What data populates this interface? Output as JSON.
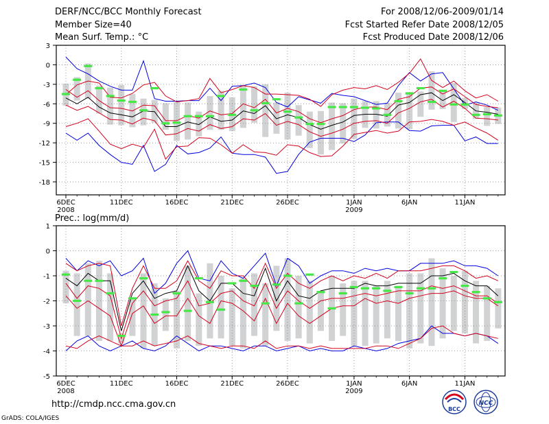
{
  "header": {
    "title": "DERF/NCC/BCC Monthly Forecast",
    "member_size": "Member Size=40",
    "variable": "Mean Surf. Temp.: °C",
    "for_range": "For 2008/12/06-2009/01/14",
    "fcst_started": "Fcst Started Refer Date 2008/12/05",
    "fcst_produced": "Fcst Produced Date 2008/12/06"
  },
  "footer": {
    "url": "http://cmdp.ncc.cma.gov.cn",
    "credit": "GrADS: COLA/IGES",
    "logo_bcc": "BCC",
    "logo_ncc": "NCC"
  },
  "colors": {
    "box": "#d0d2d4",
    "mean": "#000000",
    "inner": "#d4001c",
    "outer": "#0000e0",
    "marker": "#46e846",
    "grid": "#888888"
  },
  "chart_data": [
    {
      "type": "box",
      "title": "Mean Surf. Temp.: °C",
      "ylabel": "",
      "ylim": [
        -20,
        3
      ],
      "yticks": [
        3,
        0,
        -3,
        -6,
        -9,
        -12,
        -15,
        -18
      ],
      "days": 40,
      "xlabels": [
        {
          "day": 1,
          "label": "6DEC",
          "sub": "2008"
        },
        {
          "day": 6,
          "label": "11DEC",
          "sub": ""
        },
        {
          "day": 11,
          "label": "16DEC",
          "sub": ""
        },
        {
          "day": 16,
          "label": "21DEC",
          "sub": ""
        },
        {
          "day": 21,
          "label": "26DEC",
          "sub": ""
        },
        {
          "day": 27,
          "label": "1JAN",
          "sub": "2009"
        },
        {
          "day": 32,
          "label": "6JAN",
          "sub": ""
        },
        {
          "day": 37,
          "label": "11JAN",
          "sub": ""
        }
      ],
      "box_low": [
        -6.3,
        -5.5,
        -5.2,
        -7.5,
        -9.2,
        -9.3,
        -9.6,
        -9.3,
        -8.9,
        -10,
        -11.7,
        -11.5,
        -11,
        -10,
        -10,
        -10.2,
        -9.7,
        -8.9,
        -11.1,
        -10.6,
        -11.5,
        -10.9,
        -12.8,
        -13.8,
        -13.1,
        -12.1,
        -11.4,
        -9.7,
        -9.8,
        -9.5,
        -9.8,
        -9.9,
        -8,
        -6.9,
        -6.8,
        -8.8,
        -6.8,
        -8.3,
        -9.4,
        -9.1
      ],
      "box_high": [
        -2.9,
        -1.9,
        0.2,
        -3.2,
        -3.5,
        -3.1,
        -4.5,
        -5.2,
        -5.4,
        -5.9,
        -5.7,
        -5.8,
        -7.2,
        -4.8,
        -4,
        -5,
        -3.1,
        -3.3,
        -3,
        -5.8,
        -4.3,
        -6.2,
        -7.2,
        -7.1,
        -5.8,
        -5.9,
        -5.2,
        -5.6,
        -5.6,
        -5.9,
        -4.3,
        -4.2,
        -4.1,
        -1,
        -3.9,
        -2.8,
        -5.1,
        -5.8,
        -6.5,
        -6.6
      ],
      "mean": [
        -5.1,
        -6,
        -5,
        -6.5,
        -7.4,
        -7.7,
        -8,
        -7.1,
        -7.2,
        -9.5,
        -9.5,
        -8.8,
        -9.2,
        -8,
        -8.7,
        -8.5,
        -7.1,
        -7.5,
        -6.3,
        -8.3,
        -7.7,
        -8.1,
        -9.2,
        -9.9,
        -9.3,
        -8.8,
        -7.8,
        -7.6,
        -7.6,
        -7.9,
        -6.2,
        -5.8,
        -4.6,
        -4.3,
        -5.5,
        -4.6,
        -5.8,
        -7.1,
        -7.3,
        -7.6
      ],
      "inner_high": [
        -3.8,
        -5,
        -4,
        -5.5,
        -6.6,
        -6.7,
        -7.1,
        -6.2,
        -6.3,
        -8.6,
        -8.6,
        -7.8,
        -8.2,
        -7.1,
        -7.7,
        -7.5,
        -6,
        -6.6,
        -5.3,
        -7.4,
        -6.7,
        -7.2,
        -8.3,
        -8.9,
        -8.3,
        -7.8,
        -6.9,
        -6.5,
        -6.5,
        -6.9,
        -5.3,
        -4.9,
        -3.6,
        -3.4,
        -4.5,
        -3.7,
        -4.9,
        -6.1,
        -6.4,
        -6.6
      ],
      "inner_low": [
        -6.2,
        -7,
        -6.4,
        -7.4,
        -8.4,
        -8.5,
        -9.1,
        -8.2,
        -8.6,
        -10.8,
        -10.6,
        -9.8,
        -10.2,
        -9.2,
        -9.8,
        -9.5,
        -8.3,
        -8.5,
        -7.5,
        -9.3,
        -8.7,
        -9.2,
        -10.3,
        -11,
        -10.5,
        -9.9,
        -9,
        -8.7,
        -8.6,
        -9,
        -7.4,
        -6.7,
        -5.7,
        -5.3,
        -6.5,
        -5.6,
        -6.7,
        -8.2,
        -8.3,
        -8.5
      ],
      "outer_high": [
        -4.6,
        -3.1,
        -2.5,
        -2.8,
        -5,
        -5.1,
        -4.4,
        -3.1,
        -2.7,
        -4.8,
        -5.7,
        -5.5,
        -5.2,
        -2.1,
        -4.3,
        -3.8,
        -3.2,
        -3.5,
        -4.5,
        -4.5,
        -4.6,
        -4.7,
        -5.3,
        -6.4,
        -4.6,
        -3.9,
        -3.5,
        -3.7,
        -3.2,
        -3.8,
        -2.7,
        -1.3,
        0.9,
        -2.4,
        -3.5,
        -2.5,
        -4,
        -5.1,
        -4.6,
        -5.6
      ],
      "outer_low": [
        -9.5,
        -9,
        -8.3,
        -10.2,
        -12.2,
        -12.9,
        -12.2,
        -12.7,
        -9.9,
        -14.5,
        -12.6,
        -12.5,
        -11.2,
        -11.3,
        -12.3,
        -13.6,
        -12.3,
        -13.4,
        -13.5,
        -13.9,
        -12.3,
        -12.5,
        -13.5,
        -14.1,
        -14,
        -12.5,
        -10.7,
        -10.4,
        -10.1,
        -10.5,
        -10.2,
        -8.8,
        -8.7,
        -8.4,
        -8.7,
        -9.3,
        -8.8,
        -9.7,
        -10.5,
        -11.6
      ],
      "outer_min": [
        -10.5,
        -11.6,
        -10.5,
        -12.4,
        -13.8,
        -15,
        -15.3,
        -12.4,
        -16.4,
        -15.3,
        -12.4,
        -13.7,
        -13.5,
        -12.8,
        -11.1,
        -13.6,
        -13.8,
        -13.8,
        -14.2,
        -16.7,
        -16.4,
        -13.8,
        -11.9,
        -11.3,
        -11.3,
        -11.3,
        -11.8,
        -10.8,
        -8.9,
        -8.8,
        -8.8,
        -10.1,
        -10.2,
        -9.4,
        -9.3,
        -9.3,
        -11.7,
        -11.1,
        -12.1,
        -12.1
      ],
      "outer_max": [
        1.2,
        -0.6,
        -1.4,
        -2.5,
        -3.3,
        -3.9,
        -3.9,
        0.6,
        -5.2,
        -5.6,
        -5.6,
        -5.5,
        -5.5,
        -3.6,
        -5.5,
        -3.3,
        -3.2,
        -2.8,
        -3.5,
        -5.8,
        -6.5,
        -4.9,
        -5.4,
        -5.9,
        -4.4,
        -4.7,
        -4.9,
        -5.5,
        -6.1,
        -5.9,
        -3.2,
        -1.2,
        -2.5,
        -1.4,
        -1.2,
        -3.7,
        -6.2,
        -5.7,
        -6.2,
        -7
      ],
      "green": [
        -4.5,
        -2.3,
        -0.2,
        -3.6,
        -4.8,
        -5.5,
        -5.7,
        -7,
        -3.6,
        -9,
        -8.9,
        -7.9,
        -7.9,
        -7.9,
        -4.8,
        -7.7,
        -3.8,
        -7,
        -5.9,
        -5.3,
        -7.2,
        -8.1,
        -9.1,
        -9.1,
        -6.5,
        -6.5,
        -6.5,
        -6.6,
        -6.7,
        -7.7,
        -5.6,
        -4.4,
        -3.6,
        -5.7,
        -4,
        -6.1,
        -6.1,
        -7.7,
        -7.6,
        -7.8
      ]
    },
    {
      "type": "box",
      "title": "Prec.: log(mm/d)",
      "ylabel": "",
      "ylim": [
        -5,
        1
      ],
      "yticks": [
        1,
        0,
        -1,
        -2,
        -3,
        -4,
        -5
      ],
      "days": 40,
      "xlabels": [
        {
          "day": 1,
          "label": "6DEC",
          "sub": "2008"
        },
        {
          "day": 6,
          "label": "11DEC",
          "sub": ""
        },
        {
          "day": 11,
          "label": "16DEC",
          "sub": ""
        },
        {
          "day": 16,
          "label": "21DEC",
          "sub": ""
        },
        {
          "day": 21,
          "label": "26DEC",
          "sub": ""
        },
        {
          "day": 27,
          "label": "1JAN",
          "sub": "2009"
        },
        {
          "day": 32,
          "label": "6JAN",
          "sub": ""
        },
        {
          "day": 37,
          "label": "11JAN",
          "sub": ""
        }
      ],
      "box_low": [
        -2.1,
        -3.4,
        -3.4,
        -3.6,
        -3.6,
        -3.7,
        -3.4,
        -3.9,
        -3.8,
        -3.2,
        -3.9,
        -3.6,
        -3.8,
        -3.5,
        -3.5,
        -3.8,
        -3.9,
        -3.4,
        -3.8,
        -3.2,
        -3.6,
        -3.5,
        -3.7,
        -3.2,
        -3.6,
        -3.4,
        -3.8,
        -3.8,
        -3.7,
        -3.5,
        -3.6,
        -3.9,
        -3.7,
        -3.8,
        -3.5,
        -3.2,
        -3.3,
        -3.7,
        -3.6,
        -3.1
      ],
      "box_high": [
        -0.8,
        -0.9,
        -0.5,
        -0.4,
        -0.9,
        -3.3,
        -1.9,
        -0.9,
        -1.3,
        -1.9,
        -1.6,
        -0.6,
        -1.7,
        -0.5,
        -1.0,
        -1.5,
        -1.1,
        -0.9,
        -1.3,
        -0.6,
        -0.3,
        -1.0,
        -1.2,
        -1.6,
        -1.0,
        -1.3,
        -1.2,
        -1.2,
        -1.4,
        -1.2,
        -1.4,
        -0.9,
        -0.9,
        -0.3,
        -0.7,
        -1.0,
        -0.8,
        -1.2,
        -1.4,
        -1.5
      ],
      "mean": [
        -1.1,
        -1.4,
        -0.9,
        -1.2,
        -1.2,
        -3.2,
        -1.7,
        -1.2,
        -1.9,
        -1.7,
        -1.6,
        -0.6,
        -1.6,
        -2.0,
        -1.3,
        -1.3,
        -1.7,
        -1.8,
        -0.7,
        -2.0,
        -1.2,
        -1.8,
        -1.9,
        -1.6,
        -1.5,
        -1.5,
        -1.5,
        -1.3,
        -1.4,
        -1.4,
        -1.3,
        -1.3,
        -1.3,
        -1.0,
        -1.0,
        -0.9,
        -1.2,
        -1.4,
        -1.4,
        -1.8
      ],
      "inner_high": [
        -1.3,
        -1.9,
        -1.4,
        -1.5,
        -1.8,
        -3.5,
        -2.1,
        -1.6,
        -2.2,
        -2.0,
        -1.9,
        -1.2,
        -2.2,
        -2.1,
        -1.7,
        -1.6,
        -2.0,
        -2.2,
        -1.3,
        -2.3,
        -1.6,
        -2.0,
        -2.3,
        -2.0,
        -1.9,
        -1.9,
        -1.8,
        -1.7,
        -1.8,
        -1.7,
        -1.6,
        -1.6,
        -1.6,
        -1.4,
        -1.5,
        -1.4,
        -1.6,
        -1.8,
        -1.8,
        -2.1
      ],
      "inner_low": [
        -1.8,
        -2.3,
        -2.0,
        -2.3,
        -2.6,
        -3.8,
        -2.5,
        -2.2,
        -2.9,
        -2.6,
        -2.6,
        -1.9,
        -2.6,
        -2.9,
        -2.0,
        -2.1,
        -2.4,
        -2.8,
        -1.9,
        -2.9,
        -2.1,
        -2.6,
        -2.9,
        -2.6,
        -2.3,
        -2.2,
        -2.2,
        -1.9,
        -2.1,
        -2.0,
        -2.1,
        -1.9,
        -1.8,
        -1.7,
        -1.7,
        -1.6,
        -1.8,
        -1.9,
        -1.9,
        -2.2
      ],
      "outer_high": [
        -0.5,
        -0.8,
        -0.6,
        -0.5,
        -0.6,
        -3.0,
        -1.5,
        -0.6,
        -1.5,
        -1.5,
        -1.2,
        -0.4,
        -1.2,
        -1.5,
        -0.8,
        -1.0,
        -1.0,
        -1.5,
        -0.5,
        -1.5,
        -0.9,
        -1.3,
        -1.5,
        -1.2,
        -1.0,
        -1.2,
        -1.0,
        -1.1,
        -0.9,
        -1.1,
        -0.8,
        -0.8,
        -0.8,
        -0.7,
        -0.6,
        -0.6,
        -0.8,
        -1.1,
        -1.0,
        -1.2
      ],
      "outer_low": [
        -3.8,
        -3.9,
        -3.6,
        -3.4,
        -3.6,
        -3.8,
        -3.8,
        -3.6,
        -3.8,
        -3.7,
        -3.6,
        -3.4,
        -3.7,
        -3.8,
        -3.9,
        -3.8,
        -3.8,
        -3.9,
        -3.6,
        -3.9,
        -3.8,
        -3.8,
        -3.9,
        -3.8,
        -3.9,
        -3.9,
        -3.9,
        -3.9,
        -3.8,
        -3.8,
        -3.9,
        -3.7,
        -3.5,
        -3.1,
        -3.0,
        -3.3,
        -3.4,
        -3.3,
        -3.4,
        -3.5
      ],
      "outer_min": [
        -4.0,
        -3.6,
        -3.4,
        -3.8,
        -4.0,
        -3.8,
        -3.6,
        -3.9,
        -4.0,
        -3.8,
        -3.4,
        -3.7,
        -4.0,
        -3.8,
        -3.8,
        -3.9,
        -4.0,
        -3.8,
        -3.8,
        -4.0,
        -3.9,
        -3.8,
        -4.0,
        -3.9,
        -4.0,
        -4.0,
        -3.8,
        -3.9,
        -4.0,
        -3.9,
        -3.7,
        -3.6,
        -3.5,
        -3.0,
        -3.3,
        -3.3,
        -3.4,
        -3.3,
        -3.4,
        -3.7
      ],
      "outer_max": [
        -0.3,
        -0.8,
        -0.4,
        -0.6,
        -0.4,
        -1.0,
        -0.8,
        -0.3,
        -1.7,
        -1.3,
        -0.5,
        0.0,
        -1.1,
        -1.2,
        -0.4,
        -0.9,
        -1.1,
        -0.6,
        -0.1,
        -1.4,
        -0.3,
        -0.6,
        -1.3,
        -1.0,
        -0.8,
        -0.8,
        -0.9,
        -0.7,
        -0.8,
        -0.7,
        -0.8,
        -0.8,
        -0.5,
        -0.5,
        -0.5,
        -0.4,
        -0.6,
        -0.6,
        -0.7,
        -1.0
      ],
      "green": [
        -0.95,
        -2.0,
        -1.2,
        -1.2,
        -1.7,
        -3.4,
        -1.9,
        -1.1,
        -2.55,
        -2.45,
        -1.7,
        -2.4,
        -1.1,
        -2.05,
        -2.35,
        -1.3,
        -1.2,
        -1.4,
        -2.1,
        -1.35,
        -1.0,
        -2.1,
        -0.95,
        -1.65,
        -2.3,
        -1.7,
        -1.45,
        -1.5,
        -1.5,
        -1.6,
        -1.45,
        -1.7,
        -1.5,
        -1.5,
        -1.1,
        -0.85,
        -1.4,
        -1.65,
        -1.9,
        -2.05
      ]
    }
  ]
}
